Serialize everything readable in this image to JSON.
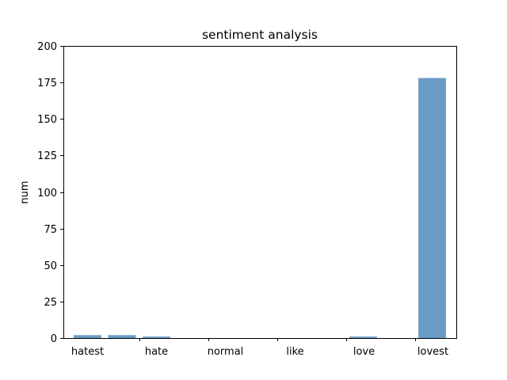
{
  "chart_data": {
    "type": "bar",
    "title": "sentiment analysis",
    "xlabel": "",
    "ylabel": "num",
    "ylim": [
      0,
      200
    ],
    "yticks": [
      0,
      25,
      50,
      75,
      100,
      125,
      150,
      175,
      200
    ],
    "xlim": [
      -0.7,
      10.7
    ],
    "x_tick_positions": [
      0,
      2,
      4,
      6,
      8,
      10
    ],
    "x_tick_labels": [
      "hatest",
      "hate",
      "normal",
      "like",
      "love",
      "lovest"
    ],
    "minor_tick_positions": [
      1.5,
      3.5,
      5.5,
      7.5,
      9.5
    ],
    "bar_color": "#6a9bc7",
    "bar_width": 0.8,
    "bars": [
      {
        "x": 0,
        "value": 2
      },
      {
        "x": 1,
        "value": 2
      },
      {
        "x": 2,
        "value": 1
      },
      {
        "x": 3,
        "value": 0
      },
      {
        "x": 4,
        "value": 0
      },
      {
        "x": 5,
        "value": 0
      },
      {
        "x": 6,
        "value": 0
      },
      {
        "x": 7,
        "value": 0
      },
      {
        "x": 8,
        "value": 1
      },
      {
        "x": 9,
        "value": 0
      },
      {
        "x": 10,
        "value": 178
      }
    ],
    "grid": false
  }
}
